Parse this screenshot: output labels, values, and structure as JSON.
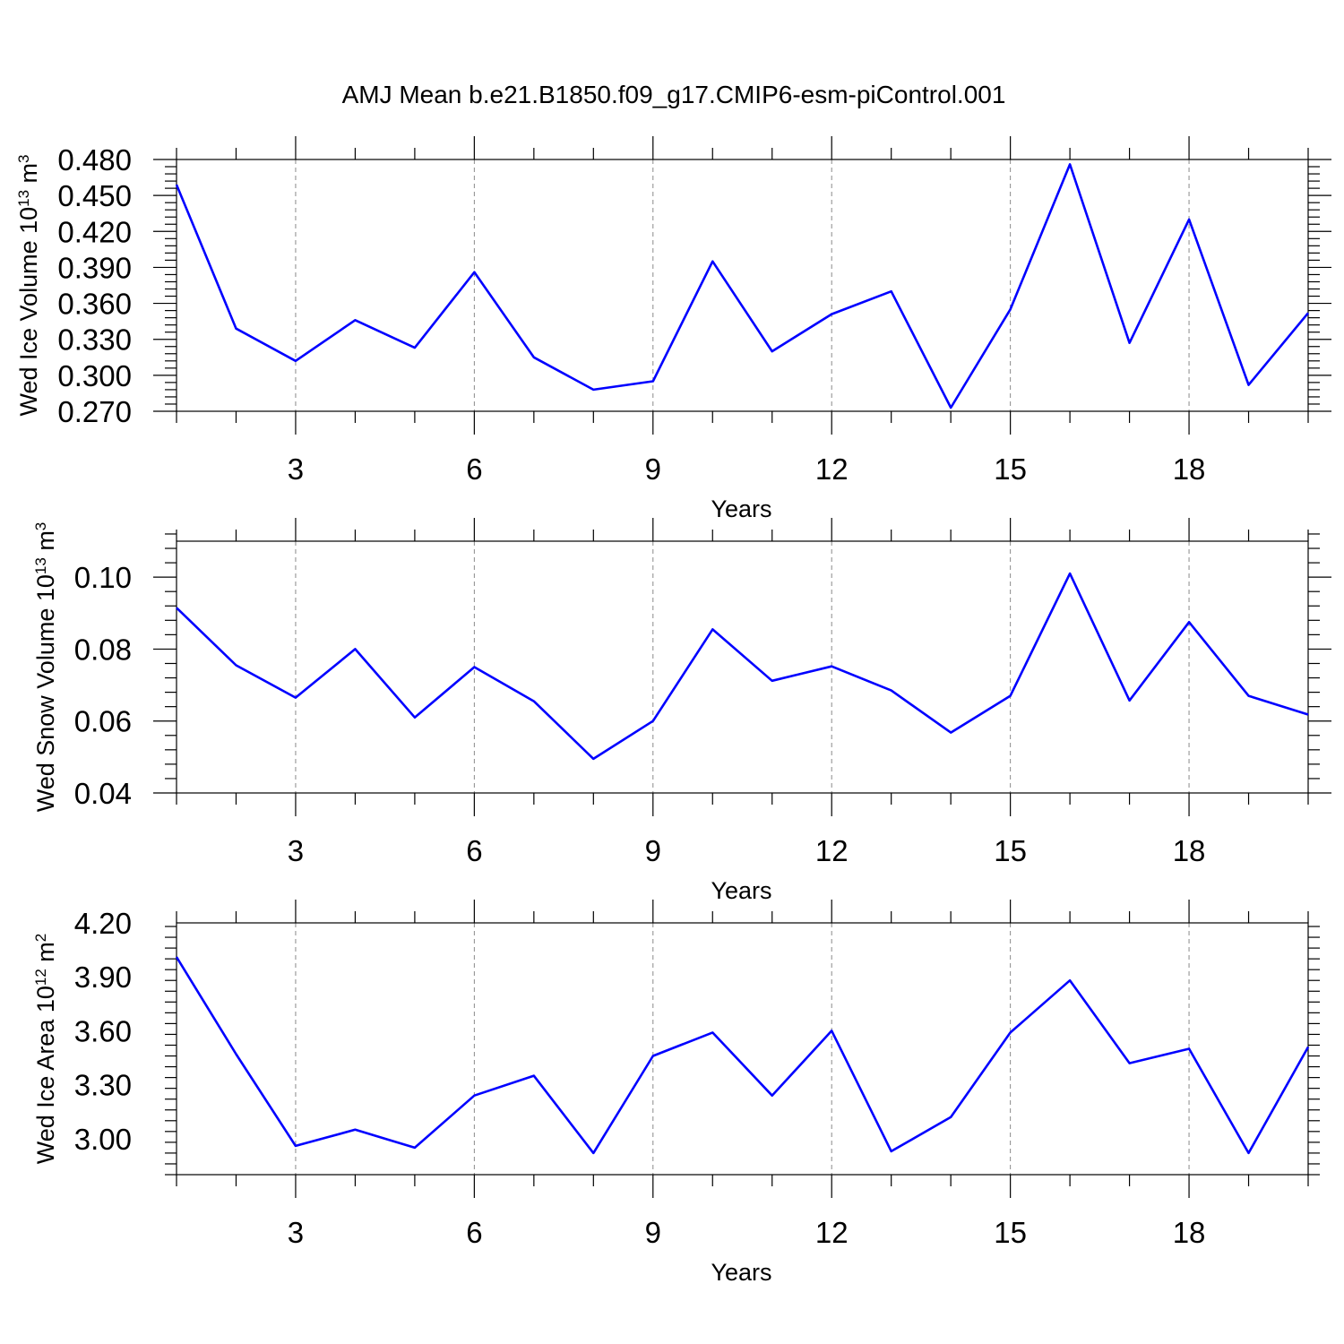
{
  "title": "AMJ Mean b.e21.B1850.f09_g17.CMIP6-esm-piControl.001",
  "chart_data": [
    {
      "type": "line",
      "ylabel": {
        "prefix": "Wed Ice Volume 10",
        "exp": "13",
        "mid": " m",
        "exp2": "3"
      },
      "xlabel": "Years",
      "xlim": [
        1,
        20
      ],
      "ylim": [
        0.27,
        0.48
      ],
      "xticks": [
        3,
        6,
        9,
        12,
        15,
        18
      ],
      "yticks": [
        "0.270",
        "0.300",
        "0.330",
        "0.360",
        "0.390",
        "0.420",
        "0.450",
        "0.480"
      ],
      "color": "#0000ff",
      "grid": "x-dashed",
      "x": [
        1,
        2,
        3,
        4,
        5,
        6,
        7,
        8,
        9,
        10,
        11,
        12,
        13,
        14,
        15,
        16,
        17,
        18,
        19,
        20
      ],
      "values": [
        0.459,
        0.339,
        0.312,
        0.346,
        0.323,
        0.386,
        0.315,
        0.288,
        0.295,
        0.395,
        0.32,
        0.351,
        0.37,
        0.273,
        0.355,
        0.476,
        0.327,
        0.43,
        0.292,
        0.352
      ]
    },
    {
      "type": "line",
      "ylabel": {
        "prefix": "Wed Snow Volume 10",
        "exp": "13",
        "mid": " m",
        "exp2": "3"
      },
      "xlabel": "Years",
      "xlim": [
        1,
        20
      ],
      "ylim": [
        0.04,
        0.11
      ],
      "xticks": [
        3,
        6,
        9,
        12,
        15,
        18
      ],
      "yticks": [
        "0.04",
        "0.06",
        "0.08",
        "0.10"
      ],
      "color": "#0000ff",
      "grid": "x-dashed",
      "x": [
        1,
        2,
        3,
        4,
        5,
        6,
        7,
        8,
        9,
        10,
        11,
        12,
        13,
        14,
        15,
        16,
        17,
        18,
        19,
        20
      ],
      "values": [
        0.0915,
        0.0755,
        0.0665,
        0.08,
        0.061,
        0.075,
        0.0655,
        0.0495,
        0.06,
        0.0855,
        0.0712,
        0.0752,
        0.0685,
        0.0568,
        0.067,
        0.101,
        0.0657,
        0.0875,
        0.067,
        0.0618
      ]
    },
    {
      "type": "line",
      "ylabel": {
        "prefix": "Wed Ice Area 10",
        "exp": "12",
        "mid": " m",
        "exp2": "2"
      },
      "xlabel": "Years",
      "xlim": [
        1,
        20
      ],
      "ylim": [
        2.8,
        4.2
      ],
      "xticks": [
        3,
        6,
        9,
        12,
        15,
        18
      ],
      "yticks": [
        "3.00",
        "3.30",
        "3.60",
        "3.90",
        "4.20"
      ],
      "color": "#0000ff",
      "grid": "x-dashed",
      "x": [
        1,
        2,
        3,
        4,
        5,
        6,
        7,
        8,
        9,
        10,
        11,
        12,
        13,
        14,
        15,
        16,
        17,
        18,
        19,
        20
      ],
      "values": [
        4.01,
        3.47,
        2.96,
        3.05,
        2.95,
        3.24,
        3.35,
        2.92,
        3.46,
        3.59,
        3.24,
        3.6,
        2.93,
        3.12,
        3.59,
        3.88,
        3.42,
        3.5,
        2.92,
        3.51
      ]
    }
  ]
}
